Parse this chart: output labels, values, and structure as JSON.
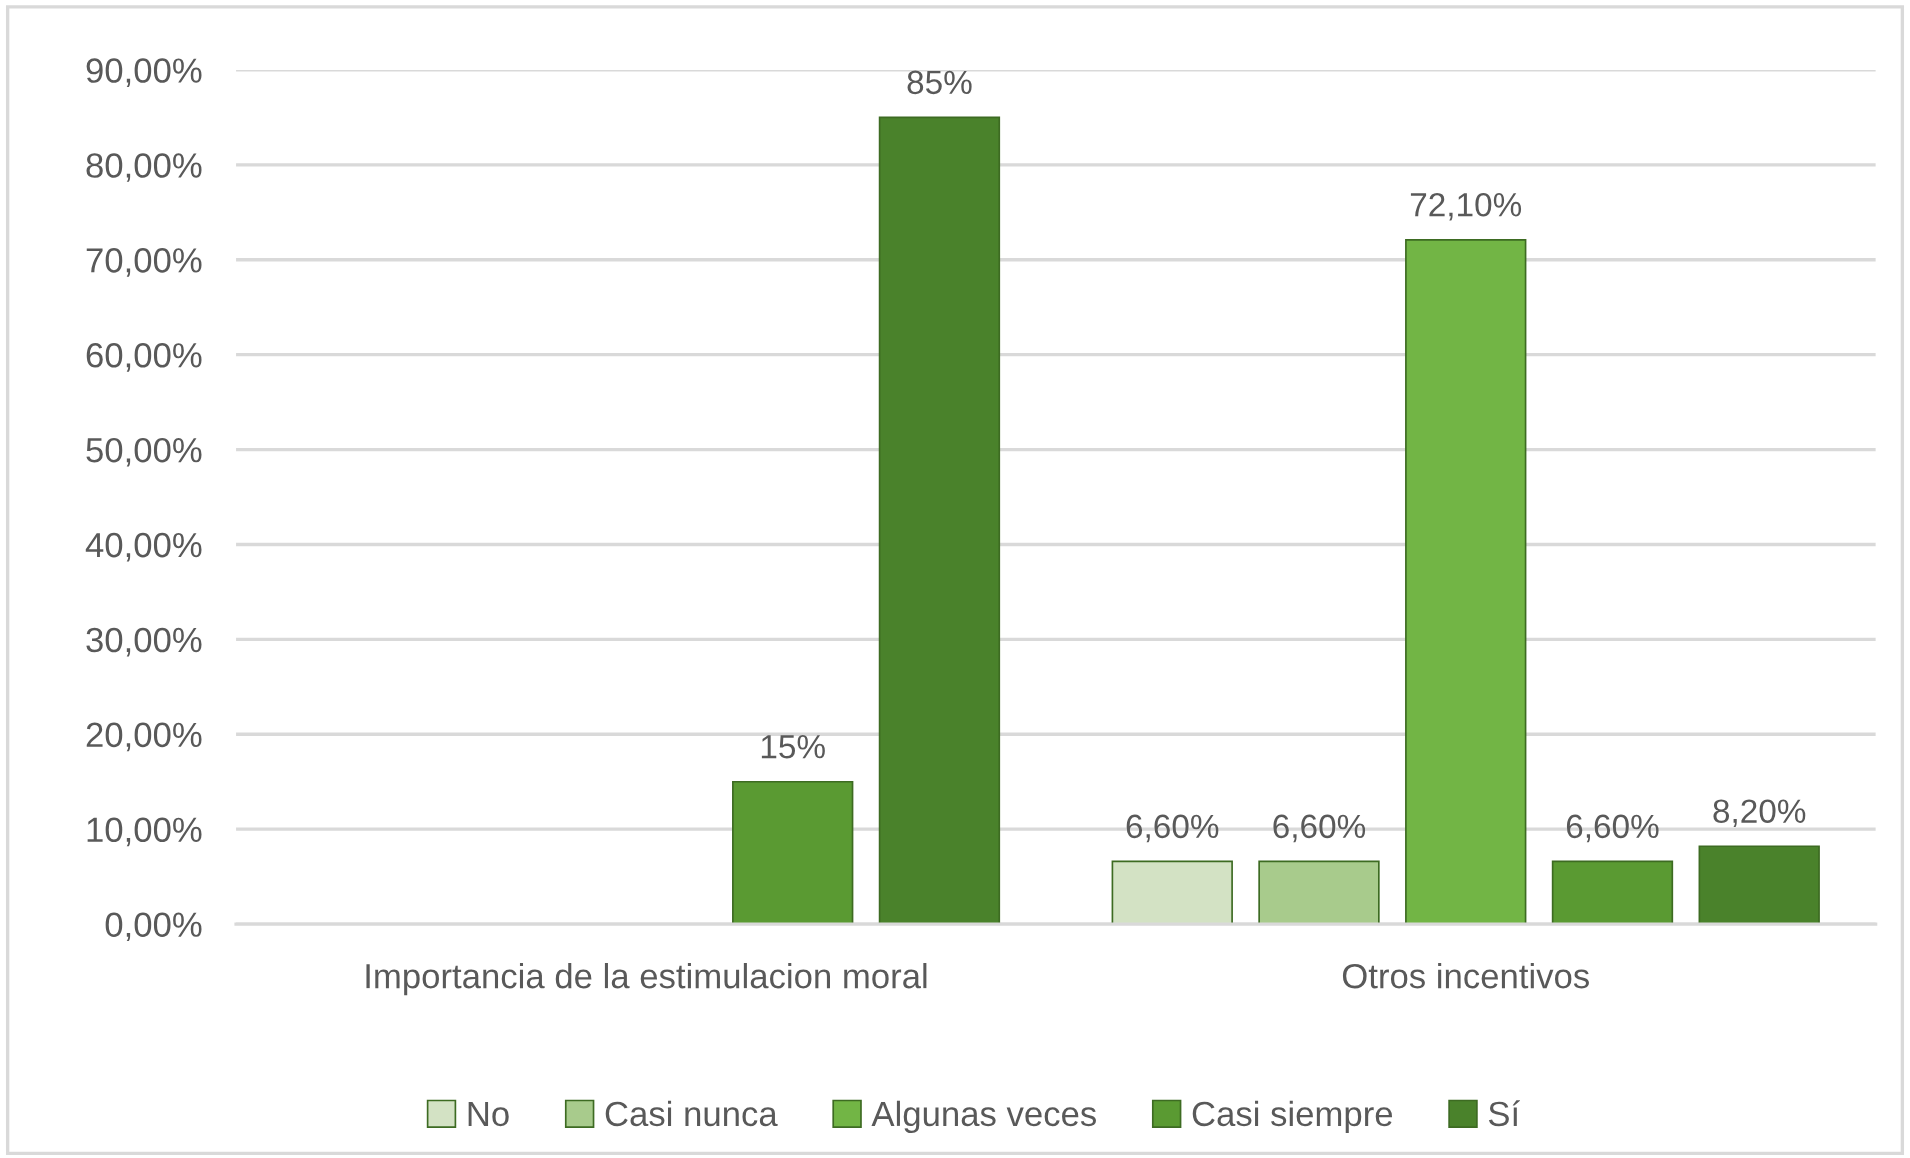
{
  "chart_data": {
    "type": "bar",
    "categories": [
      "Importancia de la estimulacion moral",
      "Otros incentivos"
    ],
    "series": [
      {
        "name": "No",
        "color": "#d3e2c4",
        "values": [
          null,
          6.6
        ],
        "value_labels": [
          null,
          "6,60%"
        ]
      },
      {
        "name": "Casi nunca",
        "color": "#a8cb8c",
        "values": [
          null,
          6.6
        ],
        "value_labels": [
          null,
          "6,60%"
        ]
      },
      {
        "name": "Algunas veces",
        "color": "#72b545",
        "values": [
          null,
          72.1
        ],
        "value_labels": [
          null,
          "72,10%"
        ]
      },
      {
        "name": "Casi siempre",
        "color": "#5a9a32",
        "values": [
          15,
          6.6
        ],
        "value_labels": [
          "15%",
          "6,60%"
        ]
      },
      {
        "name": "Sí",
        "color": "#4a822b",
        "values": [
          85,
          8.2
        ],
        "value_labels": [
          "85%",
          "8,20%"
        ]
      }
    ],
    "ylim": [
      0,
      90
    ],
    "yticks": [
      {
        "value": 0,
        "label": "0,00%"
      },
      {
        "value": 10,
        "label": "10,00%"
      },
      {
        "value": 20,
        "label": "20,00%"
      },
      {
        "value": 30,
        "label": "30,00%"
      },
      {
        "value": 40,
        "label": "40,00%"
      },
      {
        "value": 50,
        "label": "50,00%"
      },
      {
        "value": 60,
        "label": "60,00%"
      },
      {
        "value": 70,
        "label": "70,00%"
      },
      {
        "value": 80,
        "label": "80,00%"
      },
      {
        "value": 90,
        "label": "90,00%"
      }
    ],
    "grid": "y",
    "legend": "bottom"
  }
}
